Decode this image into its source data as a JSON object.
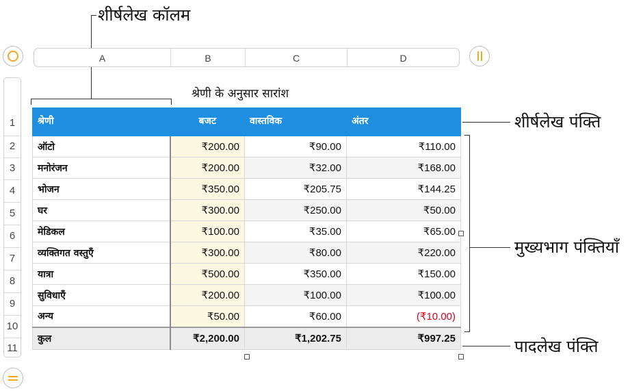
{
  "annotations": {
    "header_column": "शीर्षलेख कॉलम",
    "header_row": "शीर्षलेख पंक्ति",
    "body_rows": "मुख्यभाग पंक्तियाँ",
    "footer_row": "पादलेख पंक्ति"
  },
  "controls": {
    "select_table_icon": "circle-icon",
    "column_controls_icon": "pause-icon",
    "row_controls_icon": "equals-icon",
    "accent_color": "#f5a623"
  },
  "columns": [
    "A",
    "B",
    "C",
    "D"
  ],
  "rows": [
    "1",
    "2",
    "3",
    "4",
    "5",
    "6",
    "7",
    "8",
    "9",
    "10",
    "11"
  ],
  "table": {
    "title": "श्रेणी के अनुसार सारांश",
    "header": [
      "श्रेणी",
      "बजट",
      "वास्तविक",
      "अंतर"
    ],
    "body": [
      [
        "ऑटो",
        "₹200.00",
        "₹90.00",
        "₹110.00"
      ],
      [
        "मनोरंजन",
        "₹200.00",
        "₹32.00",
        "₹168.00"
      ],
      [
        "भोजन",
        "₹350.00",
        "₹205.75",
        "₹144.25"
      ],
      [
        "घर",
        "₹300.00",
        "₹250.00",
        "₹50.00"
      ],
      [
        "मेडिकल",
        "₹100.00",
        "₹35.00",
        "₹65.00"
      ],
      [
        "व्यक्तिगत वस्तुएँ",
        "₹300.00",
        "₹80.00",
        "₹220.00"
      ],
      [
        "यात्रा",
        "₹500.00",
        "₹350.00",
        "₹150.00"
      ],
      [
        "सुविधाएँ",
        "₹200.00",
        "₹100.00",
        "₹100.00"
      ],
      [
        "अन्य",
        "₹50.00",
        "₹60.00",
        "(₹10.00)"
      ]
    ],
    "footer": [
      "कुल",
      "₹2,200.00",
      "₹1,202.75",
      "₹997.25"
    ],
    "header_color": "#1e8fe0",
    "negative_color": "#e0001b"
  }
}
